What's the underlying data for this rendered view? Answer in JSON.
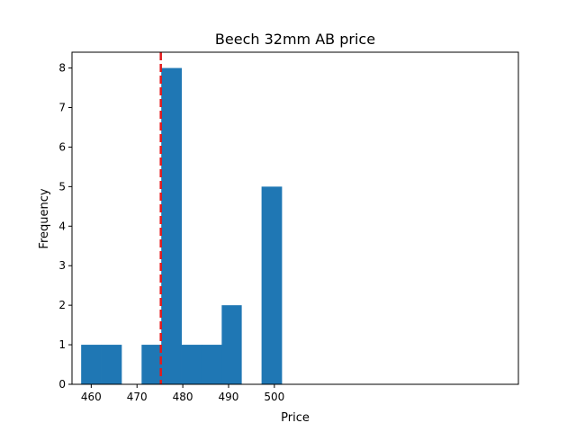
{
  "chart_data": {
    "type": "bar",
    "title": "Beech 32mm AB price",
    "xlabel": "Price",
    "ylabel": "Frequency",
    "xlim": [
      455.8,
      553.3
    ],
    "ylim": [
      0,
      8.4
    ],
    "xticks": [
      460,
      470,
      480,
      490,
      500
    ],
    "yticks": [
      0,
      1,
      2,
      3,
      4,
      5,
      6,
      7,
      8
    ],
    "bins": [
      {
        "x0": 457.8,
        "x1": 462.2,
        "count": 1
      },
      {
        "x0": 462.2,
        "x1": 466.6,
        "count": 1
      },
      {
        "x0": 466.6,
        "x1": 471.0,
        "count": 0
      },
      {
        "x0": 471.0,
        "x1": 475.3,
        "count": 1
      },
      {
        "x0": 475.3,
        "x1": 479.7,
        "count": 8
      },
      {
        "x0": 479.7,
        "x1": 484.1,
        "count": 1
      },
      {
        "x0": 484.1,
        "x1": 488.5,
        "count": 1
      },
      {
        "x0": 488.5,
        "x1": 492.8,
        "count": 2
      },
      {
        "x0": 492.8,
        "x1": 497.2,
        "count": 0
      },
      {
        "x0": 497.2,
        "x1": 501.6,
        "count": 5
      }
    ],
    "reference_line": {
      "x": 475.2,
      "color": "#e31a1c",
      "style": "dashed"
    },
    "bar_color": "#1f77b4",
    "grid": false,
    "legend": "none"
  }
}
